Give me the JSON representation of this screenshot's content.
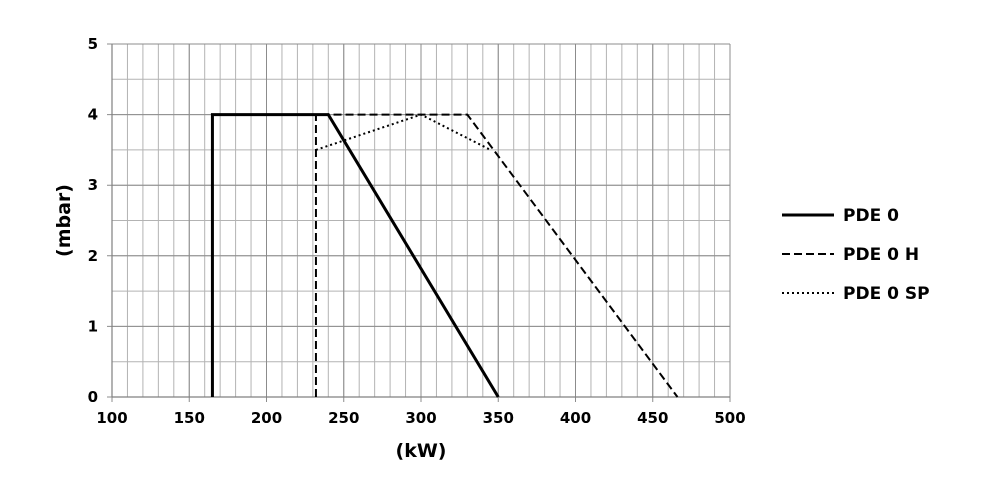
{
  "chart_data": {
    "type": "line",
    "xlabel": "(kW)",
    "ylabel": "(mbar)",
    "xlim": [
      100,
      500
    ],
    "ylim": [
      0,
      5
    ],
    "x_ticks": [
      100,
      150,
      200,
      250,
      300,
      350,
      400,
      450,
      500
    ],
    "y_ticks": [
      0,
      1,
      2,
      3,
      4,
      5
    ],
    "x_minor_step": 10,
    "y_minor_step": 0.5,
    "grid": true,
    "legend_position": "right",
    "series": [
      {
        "name": "PDE 0",
        "style": "solid",
        "color": "#000000",
        "points": [
          [
            165,
            0
          ],
          [
            165,
            4
          ],
          [
            240,
            4
          ],
          [
            350,
            0
          ]
        ]
      },
      {
        "name": "PDE 0 H",
        "style": "dashed",
        "color": "#000000",
        "points": [
          [
            232,
            0
          ],
          [
            232,
            4
          ],
          [
            330,
            4
          ],
          [
            466,
            0
          ]
        ]
      },
      {
        "name": "PDE 0 SP",
        "style": "dotted",
        "color": "#000000",
        "points": [
          [
            232,
            3.5
          ],
          [
            300,
            4
          ],
          [
            345,
            3.5
          ]
        ]
      }
    ]
  }
}
